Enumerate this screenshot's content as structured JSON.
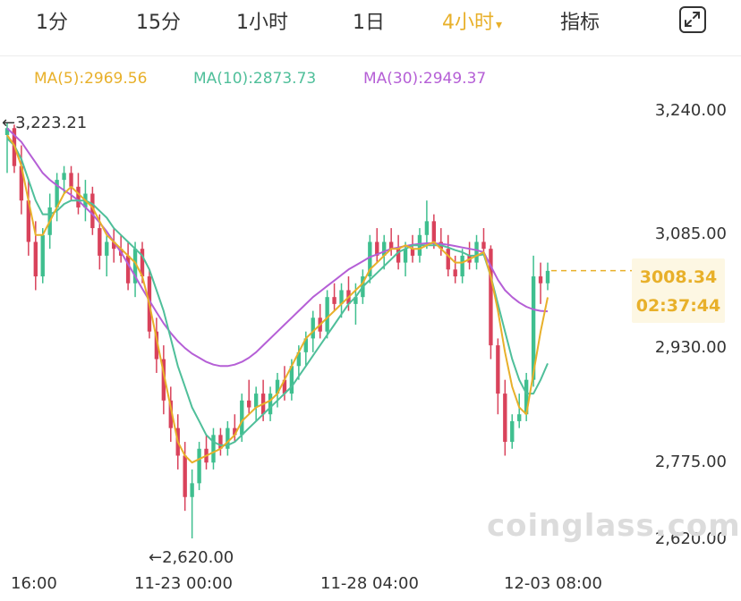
{
  "tabs": [
    {
      "label": "1分"
    },
    {
      "label": "15分"
    },
    {
      "label": "1小时"
    },
    {
      "label": "1日"
    },
    {
      "label": "4小时",
      "active": true,
      "caret": "▾"
    },
    {
      "label": "指标"
    }
  ],
  "fullscreen_icon": "fullscreen-icon",
  "colors": {
    "up": "#3fbf8f",
    "down": "#d9425b",
    "ma5": "#e8b02a",
    "ma10": "#4fbf9a",
    "ma30": "#b55fd6",
    "accent": "#e8b02a"
  },
  "chart_data": {
    "type": "candlestick",
    "title": "",
    "legend": [
      {
        "name": "MA(5)",
        "value": "2969.56",
        "label": "MA(5):2969.56"
      },
      {
        "name": "MA(10)",
        "value": "2873.73",
        "label": "MA(10):2873.73"
      },
      {
        "name": "MA(30)",
        "value": "2949.37",
        "label": "MA(30):2949.37"
      }
    ],
    "y_ticks": [
      "3,240.00",
      "3,085.00",
      "2,930.00",
      "2,775.00",
      "2,620.00"
    ],
    "ylim": [
      2580,
      3300
    ],
    "x_ticks": [
      "16:00",
      "11-23 00:00",
      "11-28 04:00",
      "12-03 08:00"
    ],
    "annotations": {
      "high": "←3,223.21",
      "low": "←2,620.00"
    },
    "last_price": "3008.34",
    "countdown": "02:37:44",
    "candles": [
      [
        3205,
        3223,
        3150,
        3215
      ],
      [
        3215,
        3220,
        3150,
        3160
      ],
      [
        3160,
        3190,
        3090,
        3110
      ],
      [
        3110,
        3140,
        3030,
        3050
      ],
      [
        3050,
        3080,
        2980,
        3000
      ],
      [
        3000,
        3070,
        2990,
        3060
      ],
      [
        3060,
        3120,
        3040,
        3100
      ],
      [
        3100,
        3150,
        3080,
        3140
      ],
      [
        3140,
        3160,
        3120,
        3150
      ],
      [
        3150,
        3160,
        3110,
        3130
      ],
      [
        3130,
        3150,
        3090,
        3100
      ],
      [
        3100,
        3140,
        3080,
        3120
      ],
      [
        3120,
        3130,
        3060,
        3070
      ],
      [
        3070,
        3090,
        3010,
        3030
      ],
      [
        3030,
        3060,
        3000,
        3050
      ],
      [
        3050,
        3070,
        3020,
        3040
      ],
      [
        3040,
        3060,
        3020,
        3030
      ],
      [
        3030,
        3050,
        2980,
        2990
      ],
      [
        2990,
        3050,
        2970,
        3040
      ],
      [
        3040,
        3050,
        2990,
        3000
      ],
      [
        3000,
        3010,
        2910,
        2920
      ],
      [
        2920,
        2940,
        2860,
        2880
      ],
      [
        2880,
        2900,
        2800,
        2820
      ],
      [
        2820,
        2840,
        2760,
        2780
      ],
      [
        2780,
        2800,
        2720,
        2740
      ],
      [
        2740,
        2760,
        2660,
        2680
      ],
      [
        2680,
        2720,
        2620,
        2700
      ],
      [
        2700,
        2760,
        2690,
        2750
      ],
      [
        2750,
        2770,
        2720,
        2730
      ],
      [
        2730,
        2780,
        2720,
        2770
      ],
      [
        2770,
        2780,
        2740,
        2750
      ],
      [
        2750,
        2790,
        2740,
        2780
      ],
      [
        2780,
        2800,
        2760,
        2770
      ],
      [
        2770,
        2830,
        2760,
        2820
      ],
      [
        2820,
        2850,
        2800,
        2810
      ],
      [
        2810,
        2840,
        2790,
        2830
      ],
      [
        2830,
        2850,
        2790,
        2800
      ],
      [
        2800,
        2840,
        2790,
        2830
      ],
      [
        2830,
        2860,
        2810,
        2850
      ],
      [
        2850,
        2870,
        2820,
        2830
      ],
      [
        2830,
        2880,
        2820,
        2870
      ],
      [
        2870,
        2900,
        2850,
        2890
      ],
      [
        2890,
        2920,
        2870,
        2910
      ],
      [
        2910,
        2950,
        2890,
        2940
      ],
      [
        2940,
        2960,
        2910,
        2920
      ],
      [
        2920,
        2980,
        2910,
        2970
      ],
      [
        2970,
        2990,
        2950,
        2960
      ],
      [
        2960,
        2990,
        2940,
        2980
      ],
      [
        2980,
        3000,
        2950,
        2960
      ],
      [
        2960,
        2990,
        2930,
        2970
      ],
      [
        2970,
        3010,
        2960,
        3000
      ],
      [
        3000,
        3060,
        2990,
        3050
      ],
      [
        3050,
        3070,
        3020,
        3030
      ],
      [
        3030,
        3060,
        3010,
        3050
      ],
      [
        3050,
        3070,
        3030,
        3040
      ],
      [
        3040,
        3060,
        3010,
        3020
      ],
      [
        3020,
        3050,
        3000,
        3040
      ],
      [
        3040,
        3060,
        3020,
        3030
      ],
      [
        3030,
        3070,
        3020,
        3060
      ],
      [
        3060,
        3110,
        3040,
        3080
      ],
      [
        3080,
        3090,
        3040,
        3050
      ],
      [
        3050,
        3070,
        3030,
        3040
      ],
      [
        3040,
        3060,
        3000,
        3010
      ],
      [
        3010,
        3030,
        2990,
        3000
      ],
      [
        3000,
        3040,
        2990,
        3030
      ],
      [
        3030,
        3050,
        3010,
        3020
      ],
      [
        3020,
        3060,
        3010,
        3050
      ],
      [
        3050,
        3070,
        3030,
        3040
      ],
      [
        3040,
        3045,
        2880,
        2900
      ],
      [
        2900,
        2910,
        2800,
        2830
      ],
      [
        2830,
        2850,
        2740,
        2760
      ],
      [
        2760,
        2800,
        2750,
        2790
      ],
      [
        2790,
        2830,
        2780,
        2800
      ],
      [
        2800,
        2860,
        2790,
        2850
      ],
      [
        2850,
        3030,
        2840,
        3000
      ],
      [
        3000,
        3020,
        2960,
        2990
      ],
      [
        2990,
        3020,
        2980,
        3008
      ]
    ],
    "ma5": [
      3205,
      3190,
      3160,
      3110,
      3060,
      3060,
      3080,
      3100,
      3120,
      3130,
      3120,
      3110,
      3100,
      3080,
      3060,
      3050,
      3040,
      3030,
      3020,
      3000,
      2960,
      2910,
      2860,
      2810,
      2760,
      2740,
      2730,
      2735,
      2740,
      2745,
      2750,
      2760,
      2770,
      2790,
      2800,
      2810,
      2815,
      2820,
      2830,
      2850,
      2870,
      2890,
      2910,
      2920,
      2930,
      2940,
      2950,
      2960,
      2970,
      2980,
      2990,
      3010,
      3020,
      3030,
      3040,
      3040,
      3045,
      3040,
      3040,
      3045,
      3050,
      3040,
      3030,
      3020,
      3020,
      3025,
      3030,
      3035,
      3000,
      2950,
      2890,
      2840,
      2810,
      2800,
      2860,
      2920,
      2969.56
    ],
    "ma10": [
      3200,
      3190,
      3170,
      3140,
      3110,
      3090,
      3090,
      3095,
      3105,
      3110,
      3110,
      3110,
      3105,
      3095,
      3085,
      3070,
      3060,
      3050,
      3040,
      3030,
      3010,
      2980,
      2950,
      2910,
      2870,
      2840,
      2810,
      2790,
      2770,
      2760,
      2755,
      2755,
      2760,
      2770,
      2780,
      2790,
      2800,
      2810,
      2820,
      2830,
      2840,
      2855,
      2870,
      2885,
      2900,
      2915,
      2930,
      2945,
      2960,
      2970,
      2985,
      2995,
      3005,
      3015,
      3025,
      3035,
      3040,
      3045,
      3045,
      3045,
      3045,
      3045,
      3042,
      3038,
      3035,
      3030,
      3030,
      3032,
      3000,
      2960,
      2920,
      2880,
      2850,
      2830,
      2830,
      2850,
      2873.73
    ],
    "ma30": [
      3215,
      3205,
      3195,
      3180,
      3165,
      3150,
      3140,
      3132,
      3125,
      3118,
      3110,
      3100,
      3090,
      3078,
      3065,
      3050,
      3035,
      3018,
      3000,
      2982,
      2965,
      2948,
      2932,
      2918,
      2906,
      2896,
      2888,
      2882,
      2876,
      2872,
      2870,
      2870,
      2872,
      2876,
      2882,
      2890,
      2900,
      2910,
      2920,
      2930,
      2940,
      2950,
      2960,
      2970,
      2978,
      2986,
      2994,
      3002,
      3010,
      3016,
      3022,
      3028,
      3032,
      3036,
      3040,
      3042,
      3044,
      3046,
      3047,
      3048,
      3048,
      3047,
      3046,
      3044,
      3042,
      3040,
      3038,
      3035,
      3015,
      2995,
      2980,
      2970,
      2962,
      2956,
      2952,
      2950,
      2949.37
    ]
  },
  "watermark": "coinglass.com"
}
